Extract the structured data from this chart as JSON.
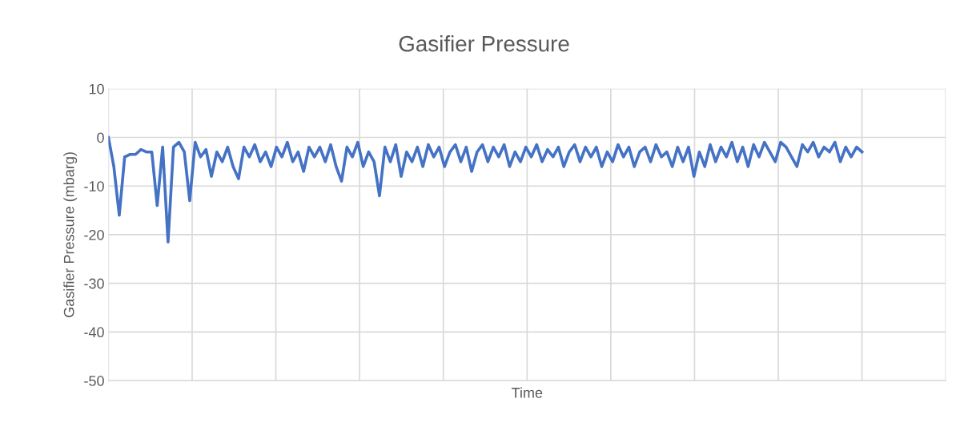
{
  "chart_data": {
    "type": "line",
    "title": "Gasifier Pressure",
    "xlabel": "Time",
    "ylabel": "Gasifier Pressure (mbarg)",
    "categories": [
      null,
      null,
      null,
      null,
      null,
      null,
      null,
      null,
      null,
      null,
      null,
      null,
      null,
      null,
      null,
      null,
      null,
      null,
      null,
      null,
      null,
      null,
      null,
      null,
      null,
      null,
      null,
      null,
      null,
      null,
      null,
      null,
      null,
      null,
      null,
      null,
      null,
      null,
      null,
      null,
      null,
      null,
      null,
      null,
      null,
      null,
      null,
      null,
      null,
      null,
      null,
      null,
      null,
      null,
      null,
      null,
      null,
      null,
      null,
      null,
      null,
      null,
      null,
      null,
      null,
      null,
      null,
      null,
      null,
      null,
      null,
      null,
      null,
      null,
      null,
      null,
      null,
      null,
      null,
      null,
      null,
      null,
      null,
      null,
      null,
      null,
      null,
      null,
      null,
      null,
      null,
      null,
      null,
      null,
      null,
      null,
      null,
      null,
      null,
      null,
      null,
      null,
      null,
      null,
      null,
      null,
      null,
      null,
      null,
      null,
      null,
      null,
      null,
      null,
      null,
      null,
      null,
      null,
      null,
      null,
      null,
      null,
      null,
      null,
      null,
      null,
      null,
      null,
      null,
      null,
      null,
      null,
      null,
      null,
      null,
      null,
      null,
      null,
      null,
      null
    ],
    "series": [
      {
        "color": "#4472c4",
        "values": [
          0,
          -6,
          -16,
          -4,
          -3.5,
          -3.5,
          -2.5,
          -3,
          -3,
          -14,
          -2,
          -21.5,
          -2,
          -1,
          -3,
          -13,
          -1,
          -4,
          -2.5,
          -8,
          -3,
          -5,
          -2,
          -6,
          -8.5,
          -2,
          -4,
          -1.5,
          -5,
          -3,
          -6,
          -2,
          -4,
          -1,
          -5,
          -3,
          -7,
          -2,
          -4,
          -2,
          -5,
          -1.5,
          -6,
          -9,
          -2,
          -4,
          -1,
          -6,
          -3,
          -5,
          -12,
          -2,
          -5,
          -1.5,
          -8,
          -3,
          -5,
          -2,
          -6,
          -1.5,
          -4,
          -2,
          -6,
          -3,
          -1.5,
          -5,
          -2,
          -7,
          -3,
          -1.5,
          -5,
          -2,
          -4,
          -1.5,
          -6,
          -3,
          -5,
          -2,
          -4,
          -1.5,
          -5,
          -2.5,
          -4,
          -2,
          -6,
          -3,
          -1.5,
          -5,
          -2,
          -4,
          -2,
          -6,
          -3,
          -5,
          -1.5,
          -4,
          -2,
          -6,
          -3,
          -2,
          -5,
          -1.5,
          -4,
          -3,
          -6,
          -2,
          -5,
          -2,
          -8,
          -3,
          -6,
          -1.5,
          -5,
          -2,
          -4,
          -1,
          -5,
          -2,
          -6,
          -1.5,
          -4,
          -1,
          -3,
          -5,
          -1,
          -2,
          -4,
          -6,
          -1.5,
          -3,
          -1,
          -4,
          -2,
          -3,
          -1,
          -5,
          -2,
          -4,
          -2,
          -3
        ]
      }
    ],
    "ylim": [
      -50,
      10
    ],
    "yticks": [
      -50,
      -40,
      -30,
      -20,
      -10,
      0,
      10
    ],
    "grid": true,
    "tick_labels": "y",
    "line_style": "solid",
    "marker": "none"
  }
}
